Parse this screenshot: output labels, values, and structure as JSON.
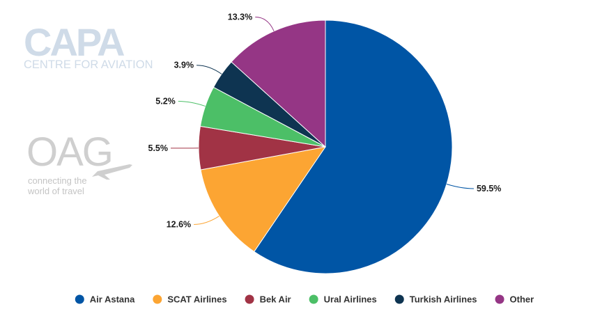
{
  "logos": {
    "capa_title": "CAPA",
    "capa_subtitle": "CENTRE FOR AVIATION",
    "oag_title": "OAG",
    "oag_tagline_1": "connecting the",
    "oag_tagline_2": "world of travel"
  },
  "chart_data": {
    "type": "pie",
    "title": "",
    "legend_position": "bottom",
    "slices": [
      {
        "name": "Air Astana",
        "value": 59.5,
        "label": "59.5%",
        "color": "#0055a5"
      },
      {
        "name": "SCAT Airlines",
        "value": 12.6,
        "label": "12.6%",
        "color": "#fca533"
      },
      {
        "name": "Bek Air",
        "value": 5.5,
        "label": "5.5%",
        "color": "#a13345"
      },
      {
        "name": "Ural Airlines",
        "value": 5.2,
        "label": "5.2%",
        "color": "#4cbf67"
      },
      {
        "name": "Turkish Airlines",
        "value": 3.9,
        "label": "3.9%",
        "color": "#0e3451"
      },
      {
        "name": "Other",
        "value": 13.3,
        "label": "13.3%",
        "color": "#953685"
      }
    ]
  }
}
